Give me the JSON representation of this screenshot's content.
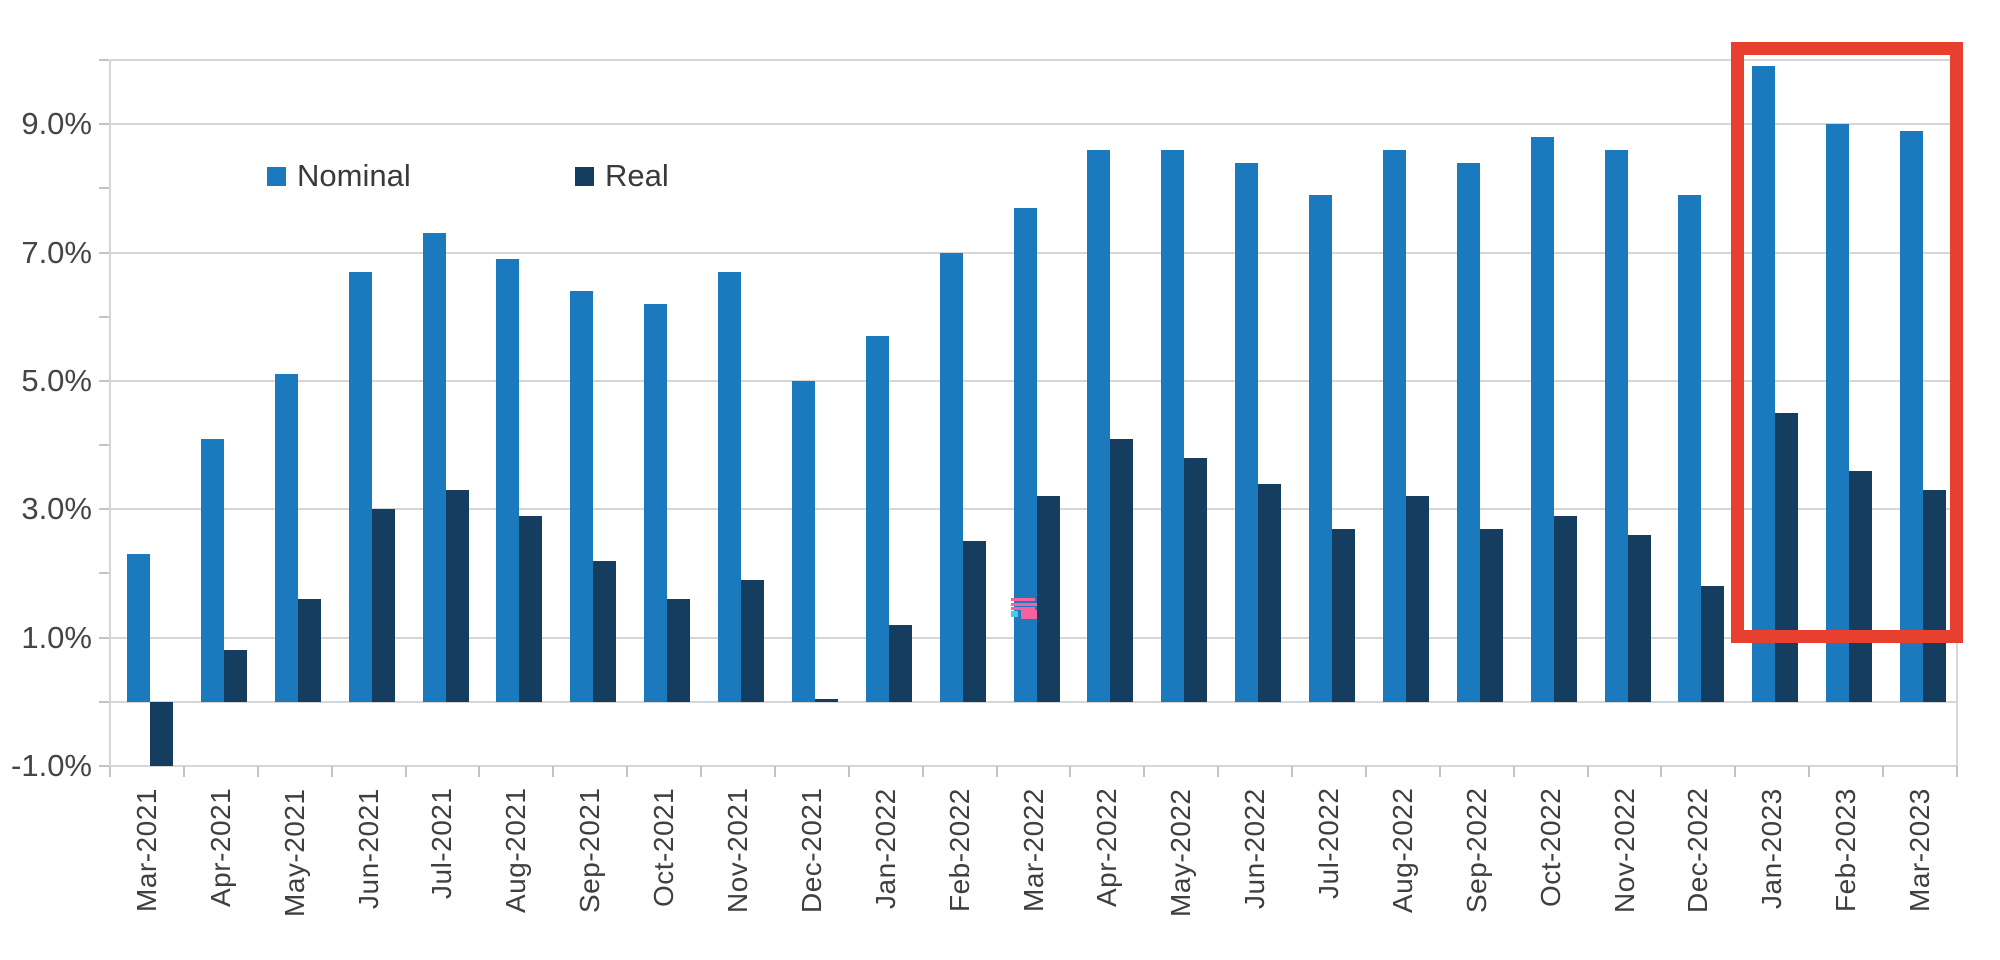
{
  "chart_data": {
    "type": "bar",
    "title": "",
    "xlabel": "",
    "ylabel": "",
    "categories": [
      "Mar-2021",
      "Apr-2021",
      "May-2021",
      "Jun-2021",
      "Jul-2021",
      "Aug-2021",
      "Sep-2021",
      "Oct-2021",
      "Nov-2021",
      "Dec-2021",
      "Jan-2022",
      "Feb-2022",
      "Mar-2022",
      "Apr-2022",
      "May-2022",
      "Jun-2022",
      "Jul-2022",
      "Aug-2022",
      "Sep-2022",
      "Oct-2022",
      "Nov-2022",
      "Dec-2022",
      "Jan-2023",
      "Feb-2023",
      "Mar-2023"
    ],
    "series": [
      {
        "name": "Nominal",
        "color": "#1b79be",
        "values": [
          2.3,
          4.1,
          5.1,
          6.7,
          7.3,
          6.9,
          6.4,
          6.2,
          6.7,
          5.0,
          5.7,
          7.0,
          7.7,
          8.6,
          8.6,
          8.4,
          7.9,
          8.6,
          8.4,
          8.8,
          8.6,
          7.9,
          9.9,
          9.0,
          8.9
        ]
      },
      {
        "name": "Real",
        "color": "#143d5f",
        "values": [
          -1.0,
          0.8,
          1.6,
          3.0,
          3.3,
          2.9,
          2.2,
          1.6,
          1.9,
          0.05,
          1.2,
          2.5,
          3.2,
          4.1,
          3.8,
          3.4,
          2.7,
          3.2,
          2.7,
          2.9,
          2.6,
          1.8,
          4.5,
          3.6,
          3.3
        ]
      }
    ],
    "ylim": [
      -1,
      10
    ],
    "yticks_labeled": [
      9,
      7,
      5,
      3,
      1,
      -1
    ],
    "ytick_label_suffix": ".0%",
    "yticks_minor": [
      10,
      8,
      6,
      4,
      2,
      0
    ],
    "grid": true,
    "legend_position": "inside-top-left"
  },
  "y_axis_labels": [
    "9.0%",
    "7.0%",
    "5.0%",
    "3.0%",
    "1.0%",
    "-1.0%"
  ],
  "legend": {
    "items": [
      {
        "label": "Nominal",
        "color": "#1b79be"
      },
      {
        "label": "Real",
        "color": "#143d5f"
      }
    ]
  },
  "annotations": {
    "highlight_box": {
      "start_category": "Jan-2023",
      "end_category": "Mar-2023",
      "stroke_color": "#e8402f",
      "stroke_width": 13
    },
    "artifact_icon": {
      "stripe_color": "#f7619e",
      "accent_color": "#4fc8e4"
    }
  },
  "colors": {
    "grid": "#d6d6d6",
    "tick": "#c3c3c3",
    "axis_text": "#454545",
    "background": "#ffffff"
  }
}
